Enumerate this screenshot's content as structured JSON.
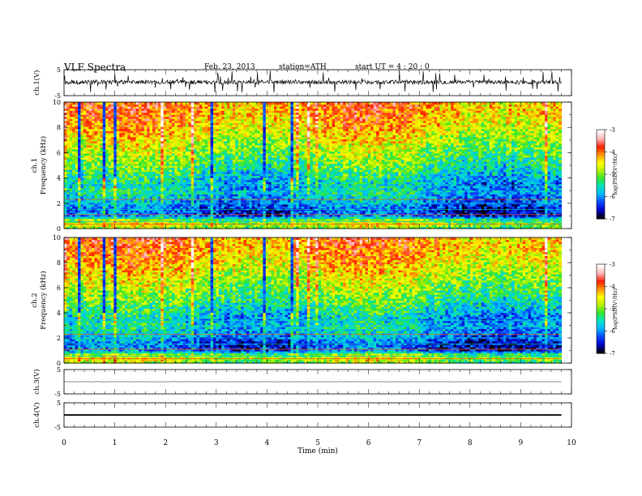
{
  "header": {
    "title": "VLF  Spectra",
    "date": "Feb. 23, 2013",
    "station": "station=ATH",
    "start": "start  UT =  4 : 20 : 0"
  },
  "chart_data": {
    "type": "heatmap",
    "x_axis": {
      "label": "Time  (min)",
      "range": [
        0,
        10
      ],
      "ticks": [
        "0",
        "1",
        "2",
        "3",
        "4",
        "5",
        "6",
        "7",
        "8",
        "9",
        "10"
      ],
      "data_end": 9.8
    },
    "panels": [
      {
        "id": "ch1-waveform",
        "kind": "waveform",
        "ylabel": "ch.1(V)",
        "ylim": [
          -5,
          5
        ],
        "ticks": [
          "5",
          "-5"
        ],
        "baseline": 0.2,
        "spike_amplitude": 4.5
      },
      {
        "id": "ch1-spectrogram",
        "kind": "spectrogram",
        "ylabel_channel": "ch.1",
        "ylabel": "Frequency  (kHz)",
        "ylim": [
          0,
          10
        ],
        "ticks": [
          "0",
          "2",
          "4",
          "6",
          "8",
          "10"
        ],
        "colorbar": {
          "label": "log(PSD(V²/Hz)",
          "range": [
            -7,
            -3
          ],
          "ticks": [
            "-3",
            "-4",
            "-5",
            "-6",
            "-7"
          ]
        }
      },
      {
        "id": "ch2-spectrogram",
        "kind": "spectrogram",
        "ylabel_channel": "ch.2",
        "ylabel": "Frequency  (kHz)",
        "ylim": [
          0,
          10
        ],
        "ticks": [
          "0",
          "2",
          "4",
          "6",
          "8",
          "10"
        ],
        "colorbar": {
          "label": "log(PSD(V²/Hz)",
          "range": [
            -7,
            -3
          ],
          "ticks": [
            "-3",
            "-4",
            "-5",
            "-6",
            "-7"
          ]
        }
      },
      {
        "id": "ch3-waveform",
        "kind": "waveform",
        "ylabel": "ch.3(V)",
        "ylim": [
          -5,
          5
        ],
        "ticks": [
          "5",
          "-5"
        ],
        "baseline": 0,
        "spike_amplitude": 0.2
      },
      {
        "id": "ch4-waveform",
        "kind": "waveform",
        "ylabel": "ch.4(V)",
        "ylim": [
          -5,
          5
        ],
        "ticks": [
          "5",
          "-5"
        ],
        "baseline": 0,
        "spike_amplitude": 0.3
      }
    ],
    "psd_profile": {
      "freq_khz": [
        0,
        0.3,
        0.7,
        1,
        1.5,
        2,
        2.5,
        3,
        3.5,
        4,
        5,
        6,
        7,
        8,
        9,
        10
      ],
      "log_psd": [
        -5.2,
        -4.6,
        -5.0,
        -6.2,
        -6.3,
        -6.0,
        -5.8,
        -5.6,
        -5.8,
        -5.6,
        -5.2,
        -4.9,
        -4.6,
        -4.3,
        -4.1,
        -4.0
      ]
    },
    "colormap": [
      "#000000",
      "#0000c8",
      "#0a46ff",
      "#00b4ff",
      "#00e1c8",
      "#32e632",
      "#b4f000",
      "#ffff00",
      "#ff9600",
      "#ff1e00",
      "#ffb4b4",
      "#ffffff"
    ]
  }
}
